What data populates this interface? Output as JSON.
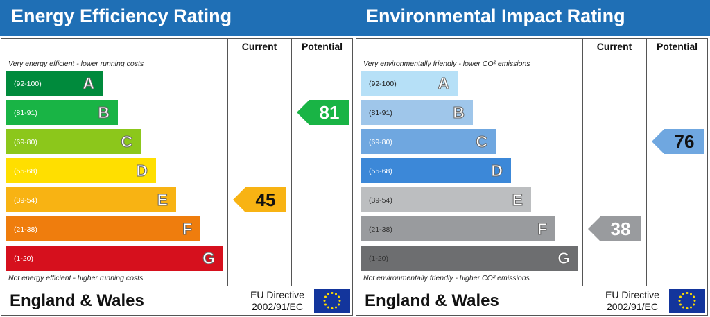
{
  "chart_data": [
    {
      "type": "bar",
      "title": "Energy Efficiency Rating",
      "columns": [
        "Current",
        "Potential"
      ],
      "top_caption": "Very energy efficient - lower running costs",
      "bottom_caption": "Not energy efficient - higher running costs",
      "bands": [
        {
          "letter": "A",
          "range": "(92-100)",
          "color": "#008a3c"
        },
        {
          "letter": "B",
          "range": "(81-91)",
          "color": "#19b445"
        },
        {
          "letter": "C",
          "range": "(69-80)",
          "color": "#8cc71b"
        },
        {
          "letter": "D",
          "range": "(55-68)",
          "color": "#ffdf00"
        },
        {
          "letter": "E",
          "range": "(39-54)",
          "color": "#f8b313"
        },
        {
          "letter": "F",
          "range": "(21-38)",
          "color": "#ef7d0d"
        },
        {
          "letter": "G",
          "range": "(1-20)",
          "color": "#d6101d"
        }
      ],
      "current": {
        "value": 45,
        "band": "E",
        "color": "#f8b313"
      },
      "potential": {
        "value": 81,
        "band": "B",
        "color": "#19b445"
      },
      "footer_title": "England & Wales",
      "directive_line1": "EU Directive",
      "directive_line2": "2002/91/EC"
    },
    {
      "type": "bar",
      "title": "Environmental Impact Rating",
      "columns": [
        "Current",
        "Potential"
      ],
      "top_caption": "Very environmentally friendly - lower CO² emissions",
      "bottom_caption": "Not environmentally friendly - higher CO² emissions",
      "bands": [
        {
          "letter": "A",
          "range": "(92-100)",
          "color": "#b6e0f7"
        },
        {
          "letter": "B",
          "range": "(81-91)",
          "color": "#9fc6ea"
        },
        {
          "letter": "C",
          "range": "(69-80)",
          "color": "#6fa7e0"
        },
        {
          "letter": "D",
          "range": "(55-68)",
          "color": "#3c88d8"
        },
        {
          "letter": "E",
          "range": "(39-54)",
          "color": "#bcbec0"
        },
        {
          "letter": "F",
          "range": "(21-38)",
          "color": "#999b9e"
        },
        {
          "letter": "G",
          "range": "(1-20)",
          "color": "#6d6e70"
        }
      ],
      "current": {
        "value": 38,
        "band": "F",
        "color": "#999b9e"
      },
      "potential": {
        "value": 76,
        "band": "C",
        "color": "#6fa7e0"
      },
      "footer_title": "England & Wales",
      "directive_line1": "EU Directive",
      "directive_line2": "2002/91/EC"
    }
  ]
}
